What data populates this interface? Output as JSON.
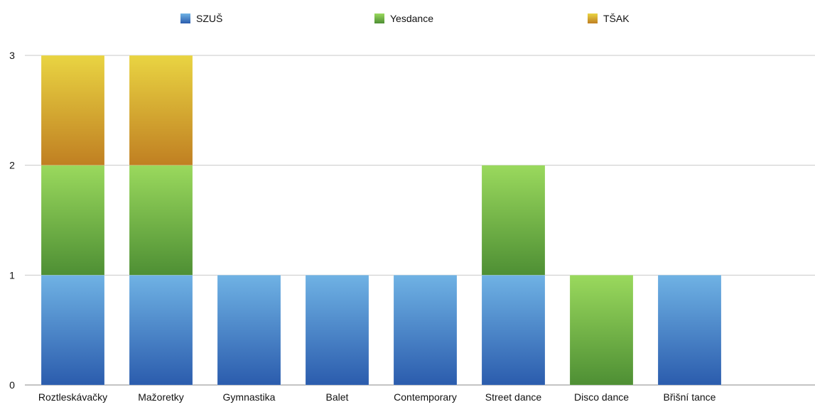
{
  "chart_data": {
    "type": "bar",
    "stacked": true,
    "categories": [
      "Roztleskávačky",
      "Mažoretky",
      "Gymnastika",
      "Balet",
      "Contemporary",
      "Street dance",
      "Disco dance",
      "Břišní tance"
    ],
    "series": [
      {
        "name": "SZUŠ",
        "values": [
          1,
          1,
          1,
          1,
          1,
          1,
          0,
          1
        ],
        "color_top": "#6fb2e4",
        "color_bottom": "#2b5cad"
      },
      {
        "name": "Yesdance",
        "values": [
          1,
          1,
          0,
          0,
          0,
          1,
          1,
          0
        ],
        "color_top": "#9ad95d",
        "color_bottom": "#4e8f34"
      },
      {
        "name": "TŠAK",
        "values": [
          1,
          1,
          0,
          0,
          0,
          0,
          0,
          0
        ],
        "color_top": "#e9d442",
        "color_bottom": "#c07f22"
      }
    ],
    "yticks": [
      "0",
      "1",
      "2",
      "3"
    ],
    "ylim": [
      0,
      3
    ],
    "grid": true,
    "legend_position": "top"
  }
}
